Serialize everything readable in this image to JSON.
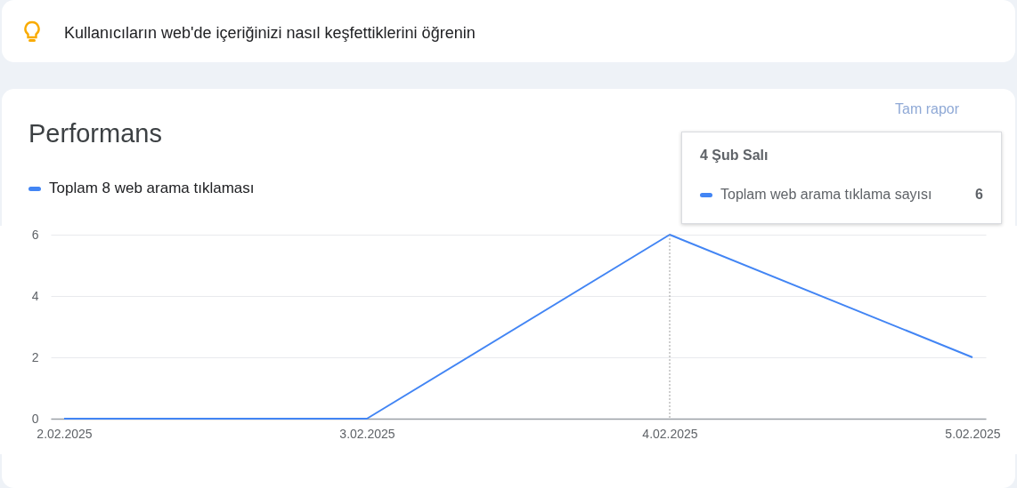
{
  "chart_data": {
    "type": "line",
    "title": "Performans",
    "categories": [
      "2.02.2025",
      "3.02.2025",
      "4.02.2025",
      "5.02.2025"
    ],
    "series": [
      {
        "name": "Toplam 8 web arama tıklaması",
        "color": "#4285f4",
        "values": [
          0,
          0,
          6,
          2
        ]
      }
    ],
    "ylim": [
      0,
      6
    ],
    "yticks": [
      0,
      2,
      4,
      6
    ],
    "grid": "y",
    "legend": "top left",
    "marker": "none",
    "line_style": "solid",
    "ref_lines": [
      {
        "axis": "x",
        "value": "4.02.2025",
        "color": "#9e9e9e",
        "line_style": "dotted"
      }
    ],
    "annotations": [
      "Kullanıcıların web'de içeriğinizi nasıl keşfettiklerini öğrenin",
      "Tam rapor",
      "4 Şub Salı",
      "Toplam web arama tıklama sayısı",
      "6"
    ]
  }
}
